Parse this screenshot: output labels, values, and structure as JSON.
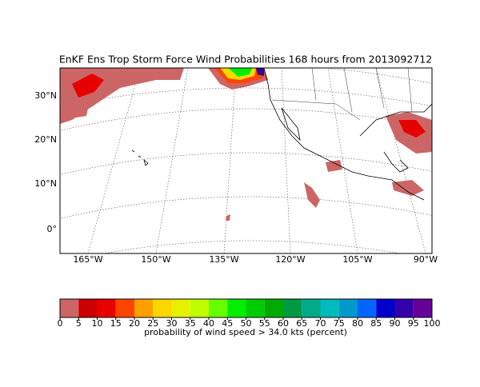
{
  "title": "EnKF Ens Trop Storm Force Wind Probabilities 168 hours from 2013092712",
  "map": {
    "lat_labels": [
      "30°N",
      "20°N",
      "10°N",
      "0°"
    ],
    "lon_labels": [
      "165°W",
      "150°W",
      "135°W",
      "120°W",
      "105°W",
      "90°W"
    ]
  },
  "colorbar": {
    "label": "probability of wind speed > 34.0 kts (percent)",
    "ticks": [
      0,
      5,
      10,
      15,
      20,
      25,
      30,
      35,
      40,
      45,
      50,
      55,
      60,
      65,
      70,
      75,
      80,
      85,
      90,
      95,
      100
    ],
    "colors": [
      "#cc6666",
      "#cc0000",
      "#e60000",
      "#ff4400",
      "#ffa000",
      "#ffd700",
      "#e6f000",
      "#c0ff00",
      "#66ff00",
      "#00ee00",
      "#00cc00",
      "#00aa00",
      "#009944",
      "#00aa88",
      "#00bbbb",
      "#0099cc",
      "#0066ff",
      "#0000cc",
      "#3300aa",
      "#660099",
      "#330033"
    ]
  }
}
